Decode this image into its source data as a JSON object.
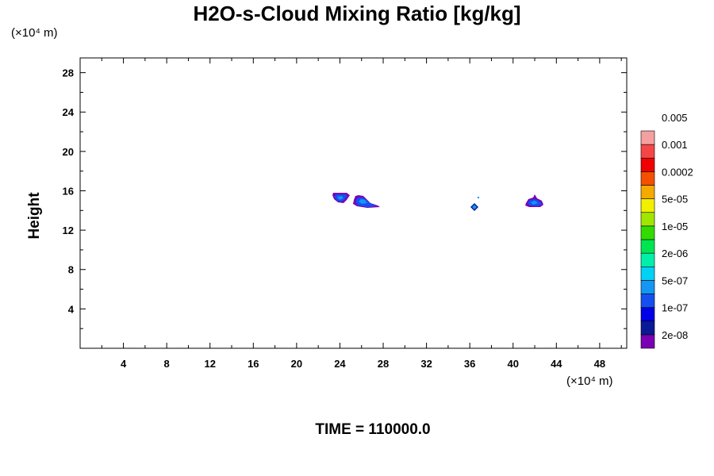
{
  "chart_data": {
    "type": "heatmap",
    "title": "H2O-s-Cloud Mixing Ratio [kg/kg]",
    "xlabel": "",
    "ylabel": "Height",
    "x_unit": "(×10⁴ m)",
    "y_unit": "(×10⁴ m)",
    "xlim": [
      0,
      50.5
    ],
    "ylim": [
      0,
      29.5
    ],
    "x_ticks": [
      4,
      8,
      12,
      16,
      20,
      24,
      28,
      32,
      36,
      40,
      44,
      48
    ],
    "y_ticks": [
      4,
      8,
      12,
      16,
      20,
      24,
      28
    ],
    "grid": false,
    "colorbar": {
      "colors": [
        "#7a00b4",
        "#0a1a96",
        "#0000e6",
        "#1450f0",
        "#1496f5",
        "#00d2f5",
        "#00f0aa",
        "#00e650",
        "#32dc00",
        "#a0e600",
        "#f0f000",
        "#f5aa00",
        "#f55000",
        "#f00000",
        "#f54646",
        "#f5a0a0"
      ],
      "labels": [
        "2e-08",
        "1e-07",
        "5e-07",
        "2e-06",
        "1e-05",
        "5e-05",
        "0.0002",
        "0.001",
        "0.005"
      ]
    },
    "regions": [
      {
        "x": 24.3,
        "y": 15.3,
        "level": "1e-07"
      },
      {
        "x": 26.7,
        "y": 14.9,
        "level": "1e-07"
      },
      {
        "x": 36.9,
        "y": 14.7,
        "level": "1e-07"
      },
      {
        "x": 42.7,
        "y": 15.0,
        "level": "1e-07"
      }
    ]
  },
  "footer": {
    "time_label": "TIME = 110000.0"
  }
}
